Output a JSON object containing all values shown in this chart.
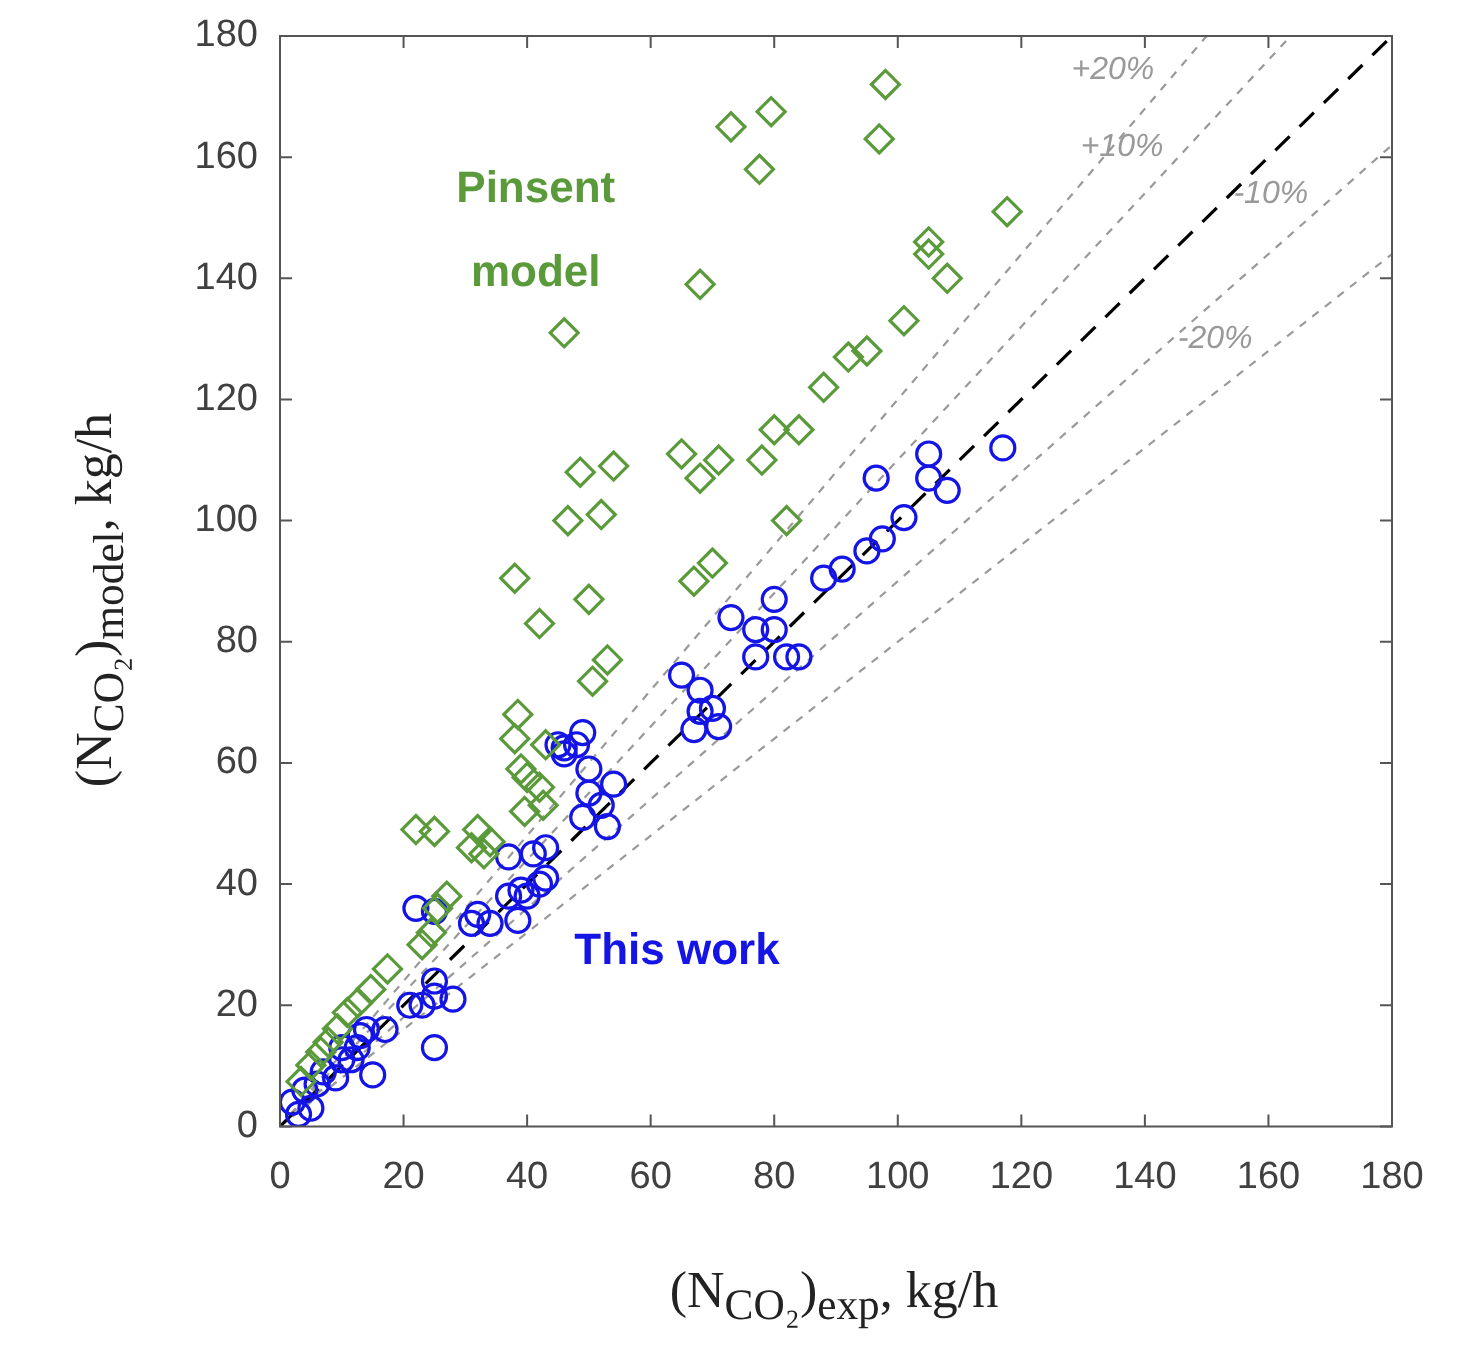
{
  "chart_data": {
    "type": "scatter",
    "xlabel": "(N$_{CO₂}$)$_{exp}$, kg/h",
    "ylabel": "(N$_{CO₂}$)$_{model}$, kg/h",
    "xlim": [
      0,
      180
    ],
    "ylim": [
      0,
      180
    ],
    "xticks": [
      0,
      20,
      40,
      60,
      80,
      100,
      120,
      140,
      160,
      180
    ],
    "yticks": [
      0,
      20,
      40,
      60,
      80,
      100,
      120,
      140,
      160,
      180
    ],
    "grid": false,
    "series": [
      {
        "type": "line",
        "color": "#000000",
        "marker": "none",
        "line_style": "dashed",
        "x": [
          0,
          180
        ],
        "values": [
          0,
          180
        ]
      },
      {
        "type": "line",
        "name": "+20%",
        "color": "#999999",
        "marker": "none",
        "line_style": "dotted",
        "x": [
          0,
          150
        ],
        "values": [
          0,
          180
        ]
      },
      {
        "type": "line",
        "name": "+10%",
        "color": "#999999",
        "marker": "none",
        "line_style": "dotted",
        "x": [
          0,
          163.6
        ],
        "values": [
          0,
          180
        ]
      },
      {
        "type": "line",
        "name": "-10%",
        "color": "#999999",
        "marker": "none",
        "line_style": "dotted",
        "x": [
          0,
          180
        ],
        "values": [
          0,
          162
        ]
      },
      {
        "type": "line",
        "name": "-20%",
        "color": "#999999",
        "marker": "none",
        "line_style": "dotted",
        "x": [
          0,
          180
        ],
        "values": [
          0,
          144
        ]
      },
      {
        "name": "Pinsent model",
        "color": "#5b9a3a",
        "marker": "diamond",
        "x": [
          98,
          97,
          79.5,
          73,
          77.6,
          117.7,
          105,
          105,
          108,
          101,
          92,
          95,
          88,
          68,
          80,
          84,
          65,
          68,
          71,
          78,
          82,
          70,
          67,
          54,
          52,
          48.6,
          46.6,
          46,
          38,
          50,
          42,
          53,
          50.6,
          38.5,
          38,
          43,
          39,
          40,
          42,
          39.6,
          42.6,
          22,
          25,
          32,
          34,
          31,
          33,
          27,
          25.5,
          24.5,
          23,
          17.4,
          14.7,
          12.6,
          10.9,
          9.3,
          7.8,
          6.6,
          5,
          3.4
        ],
        "values": [
          172,
          163,
          167.5,
          165,
          158,
          151,
          146,
          144,
          140,
          133,
          127,
          128,
          122,
          139,
          115,
          115,
          111,
          107,
          110,
          110,
          100,
          93,
          90,
          109,
          101,
          108,
          100,
          131,
          90.5,
          87,
          83,
          77,
          73.5,
          68,
          64,
          63,
          59,
          57.6,
          56,
          52,
          53,
          49,
          48.7,
          49,
          47,
          46,
          45,
          38,
          36,
          32,
          30,
          26,
          22.6,
          20.4,
          18.8,
          16.1,
          13.9,
          12.3,
          10.1,
          7.4
        ]
      },
      {
        "name": "This work",
        "color": "#1414e6",
        "marker": "circle",
        "x": [
          3,
          2,
          5,
          4,
          6,
          7,
          9,
          10,
          11.5,
          15,
          10,
          13,
          14,
          17,
          12.5,
          25,
          21,
          23,
          25,
          28,
          25,
          22,
          25,
          31,
          32,
          34,
          38.5,
          37,
          39,
          40,
          42,
          43,
          37,
          41,
          43,
          46,
          48,
          50,
          54,
          50,
          52,
          49,
          53,
          73,
          80,
          77,
          80,
          77,
          82,
          84,
          65,
          68,
          68,
          70,
          71,
          67,
          49,
          45,
          46,
          105,
          117,
          105,
          108,
          96.5,
          101,
          97.5,
          95,
          91,
          88
        ],
        "values": [
          2,
          4,
          3,
          6,
          7,
          9,
          8,
          11,
          11,
          8.5,
          13,
          15,
          16,
          16,
          13,
          13,
          20,
          20,
          21.5,
          21,
          24,
          36,
          35.5,
          33.5,
          35,
          33.5,
          34,
          38,
          39,
          38,
          40,
          41,
          44.5,
          45,
          46,
          62.5,
          63,
          59,
          56.5,
          55,
          53,
          51,
          49.5,
          84,
          87,
          82,
          82,
          77.5,
          77.5,
          77.5,
          74.5,
          72,
          68.5,
          69,
          66,
          65.5,
          65,
          63,
          61.5,
          111,
          112,
          107,
          105,
          107,
          100.5,
          97,
          95,
          92,
          90.5
        ]
      }
    ]
  }
}
